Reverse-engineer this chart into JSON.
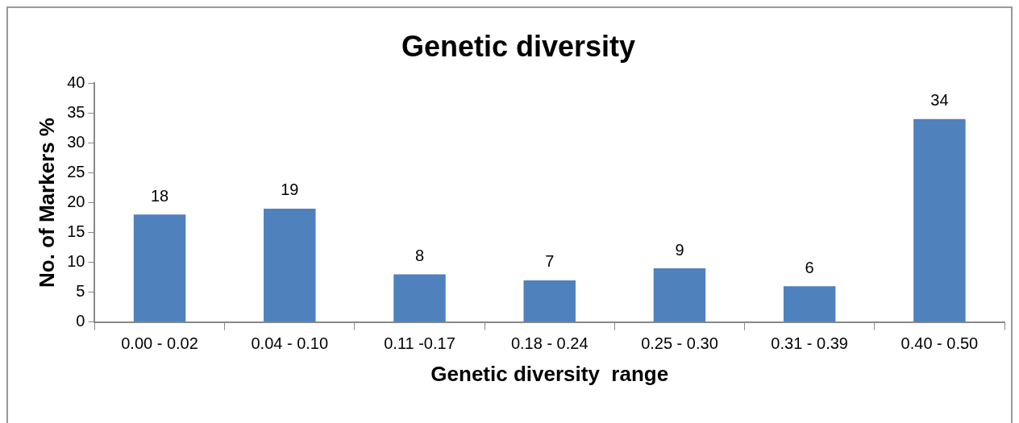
{
  "chart_data": {
    "type": "bar",
    "title": "Genetic diversity",
    "xlabel": "Genetic diversity  range",
    "ylabel": "No. of Markers %",
    "categories": [
      "0.00 - 0.02",
      "0.04 - 0.10",
      "0.11 -0.17",
      "0.18 - 0.24",
      "0.25 - 0.30",
      "0.31 - 0.39",
      "0.40 - 0.50"
    ],
    "values": [
      18,
      19,
      8,
      7,
      9,
      6,
      34
    ],
    "color": "#4f81bd",
    "ylim": [
      0,
      40
    ],
    "yticks": [
      0,
      5,
      10,
      15,
      20,
      25,
      30,
      35,
      40
    ],
    "grid": false,
    "legend": false,
    "data_labels": true
  }
}
